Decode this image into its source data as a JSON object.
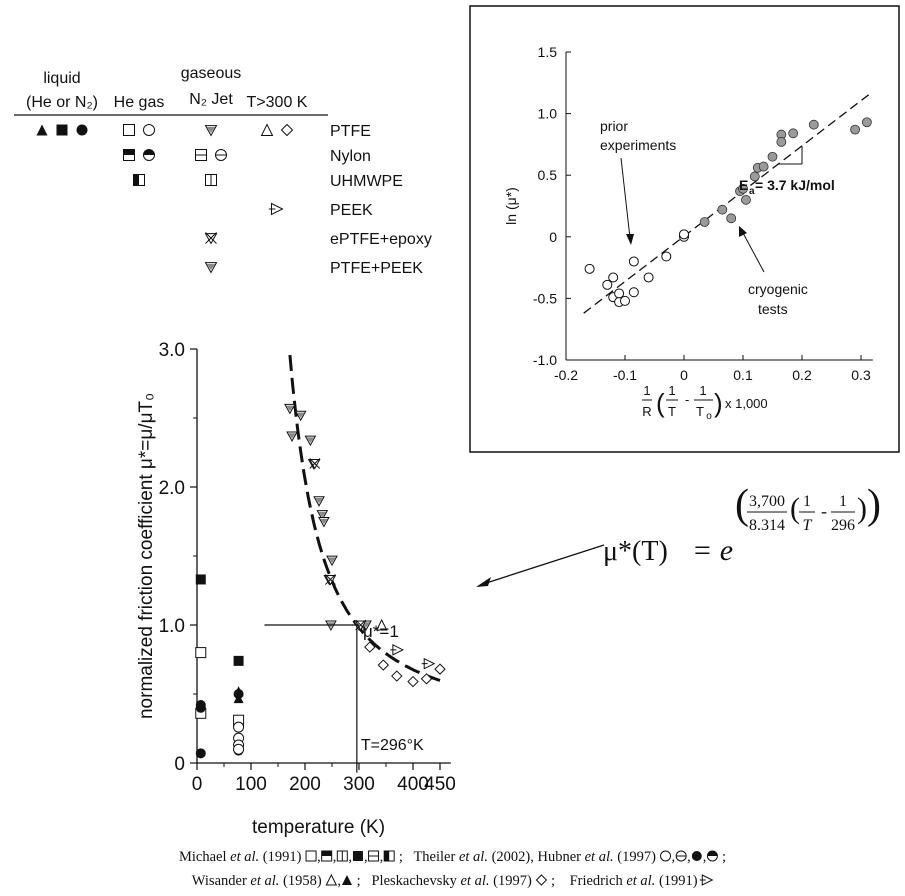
{
  "legend_table": {
    "headers": [
      {
        "lines": [
          "liquid",
          "(He or N₂)"
        ]
      },
      {
        "lines": [
          "He gas"
        ]
      },
      {
        "lines": [
          "gaseous",
          "N₂ Jet"
        ]
      },
      {
        "lines": [
          "T>300 K"
        ]
      }
    ],
    "rows": [
      {
        "material": "PTFE",
        "symbols": [
          [
            "tri-filled",
            "square-filled",
            "circle-filled"
          ],
          [
            "square-open",
            "circle-open"
          ],
          [
            "tri-down-half"
          ],
          [
            "tri-open",
            "diamond-open"
          ]
        ]
      },
      {
        "material": "Nylon",
        "symbols": [
          [],
          [
            "square-half-top",
            "circle-half-top"
          ],
          [
            "square-half-horiz",
            "circle-half-horiz"
          ],
          []
        ]
      },
      {
        "material": "UHMWPE",
        "symbols": [
          [],
          [
            "square-half-left"
          ],
          [
            "square-half-vert"
          ],
          []
        ]
      },
      {
        "material": "PEEK",
        "symbols": [
          [],
          [],
          [],
          [
            "tri-right-open"
          ]
        ]
      },
      {
        "material": "ePTFE+epoxy",
        "symbols": [
          [],
          [],
          [
            "tri-down-x"
          ],
          []
        ]
      },
      {
        "material": "PTFE+PEEK",
        "symbols": [
          [],
          [],
          [
            "tri-down-half"
          ],
          []
        ]
      }
    ]
  },
  "chart_data": [
    {
      "type": "scatter",
      "xlabel": "temperature (K)",
      "ylabel": "normalized friction coefficient  μ*=μ/μT₀",
      "xlim": [
        0,
        470
      ],
      "ylim": [
        0,
        3.0
      ],
      "x_ticks": [
        0,
        100,
        200,
        300,
        400,
        450
      ],
      "y_ticks": [
        {
          "v": 0,
          "label": "0"
        },
        {
          "v": 1,
          "label": "1.0"
        },
        {
          "v": 2,
          "label": "2.0"
        },
        {
          "v": 3,
          "label": "3.0"
        }
      ],
      "series": [
        {
          "marker": "square-filled",
          "points": [
            [
              7,
              1.33
            ],
            [
              77,
              0.74
            ]
          ]
        },
        {
          "marker": "square-open",
          "points": [
            [
              7,
              0.8
            ],
            [
              7,
              0.36
            ],
            [
              77,
              0.31
            ]
          ]
        },
        {
          "marker": "circle-filled",
          "points": [
            [
              7,
              0.42
            ],
            [
              7,
              0.4
            ],
            [
              7,
              0.07
            ],
            [
              77,
              0.5
            ],
            [
              77,
              0.09
            ]
          ]
        },
        {
          "marker": "circle-open",
          "points": [
            [
              77,
              0.26
            ],
            [
              77,
              0.18
            ],
            [
              77,
              0.13
            ],
            [
              77,
              0.1
            ]
          ]
        },
        {
          "marker": "tri-filled",
          "points": [
            [
              77,
              0.52
            ],
            [
              77,
              0.47
            ]
          ]
        },
        {
          "marker": "tri-down-half",
          "points": [
            [
              172,
              2.57
            ],
            [
              176,
              2.37
            ],
            [
              192,
              2.52
            ],
            [
              210,
              2.34
            ],
            [
              216,
              2.17
            ],
            [
              226,
              1.9
            ],
            [
              232,
              1.8
            ],
            [
              235,
              1.75
            ],
            [
              250,
              1.47
            ],
            [
              245,
              1.33
            ],
            [
              248,
              1.0
            ],
            [
              300,
              1.0
            ],
            [
              307,
              0.99
            ],
            [
              313,
              1.0
            ]
          ]
        },
        {
          "marker": "tri-down-x",
          "points": [
            [
              218,
              2.17
            ],
            [
              247,
              1.33
            ],
            [
              303,
              1.0
            ]
          ]
        },
        {
          "marker": "tri-open",
          "points": [
            [
              342,
              1.0
            ]
          ]
        },
        {
          "marker": "diamond-open",
          "points": [
            [
              320,
              0.84
            ],
            [
              345,
              0.71
            ],
            [
              370,
              0.63
            ],
            [
              400,
              0.59
            ],
            [
              425,
              0.61
            ],
            [
              450,
              0.68
            ]
          ]
        },
        {
          "marker": "tri-right-open",
          "points": [
            [
              372,
              0.82
            ],
            [
              430,
              0.72
            ]
          ]
        }
      ],
      "fit_curve": {
        "style": "dashed",
        "x_range": [
          172,
          450
        ],
        "ea_j_per_mol": 3700,
        "R": 8.314,
        "T0": 296
      },
      "annotations": {
        "equation_lhs": "μ*(T)",
        "equation_rhs": "= e",
        "exponent_num1": "3,700",
        "exponent_den1": "8.314",
        "exponent_num2": "1",
        "exponent_den2": "T",
        "exponent_minus": "-",
        "exponent_num3": "1",
        "exponent_den3": "296",
        "mu_one": "μ*=1",
        "t_ref": "T=296°K"
      }
    },
    {
      "type": "scatter",
      "xlabel": "1/R (1/T - 1/To) x 1,000",
      "ylabel": "ln (μ*)",
      "xlim": [
        -0.2,
        0.3
      ],
      "ylim": [
        -1.0,
        1.5
      ],
      "x_ticks": [
        {
          "v": -0.2,
          "label": "-0.2"
        },
        {
          "v": -0.1,
          "label": "-0.1"
        },
        {
          "v": 0,
          "label": "0"
        },
        {
          "v": 0.1,
          "label": "0.1"
        },
        {
          "v": 0.2,
          "label": "0.2"
        },
        {
          "v": 0.3,
          "label": "0.3"
        }
      ],
      "y_ticks": [
        {
          "v": -1.0,
          "label": "-1.0"
        },
        {
          "v": -0.5,
          "label": "-0.5"
        },
        {
          "v": 0,
          "label": "0"
        },
        {
          "v": 0.5,
          "label": "0.5"
        },
        {
          "v": 1.0,
          "label": "1.0"
        },
        {
          "v": 1.5,
          "label": "1.5"
        }
      ],
      "series": [
        {
          "name": "prior experiments",
          "marker": "circle-open",
          "points": [
            [
              -0.16,
              -0.26
            ],
            [
              -0.13,
              -0.39
            ],
            [
              -0.12,
              -0.33
            ],
            [
              -0.12,
              -0.49
            ],
            [
              -0.11,
              -0.46
            ],
            [
              -0.11,
              -0.53
            ],
            [
              -0.1,
              -0.52
            ],
            [
              -0.085,
              -0.2
            ],
            [
              -0.085,
              -0.45
            ],
            [
              -0.06,
              -0.33
            ],
            [
              -0.03,
              -0.16
            ],
            [
              0.0,
              0.0
            ],
            [
              0.0,
              0.02
            ]
          ]
        },
        {
          "name": "cryogenic tests",
          "marker": "circle-gray",
          "points": [
            [
              0.035,
              0.12
            ],
            [
              0.065,
              0.22
            ],
            [
              0.08,
              0.15
            ],
            [
              0.095,
              0.37
            ],
            [
              0.1,
              0.39
            ],
            [
              0.105,
              0.3
            ],
            [
              0.12,
              0.49
            ],
            [
              0.125,
              0.56
            ],
            [
              0.135,
              0.57
            ],
            [
              0.15,
              0.65
            ],
            [
              0.165,
              0.83
            ],
            [
              0.165,
              0.77
            ],
            [
              0.185,
              0.84
            ],
            [
              0.22,
              0.91
            ],
            [
              0.29,
              0.87
            ],
            [
              0.31,
              0.93
            ]
          ]
        }
      ],
      "fit_line": {
        "style": "dashed",
        "from": [
          -0.17,
          -0.62
        ],
        "to": [
          0.315,
          1.16
        ],
        "slope_from": [
          0.16,
          0.59
        ],
        "slope_to": [
          0.2,
          0.59
        ]
      },
      "annotations": {
        "prior": [
          "prior",
          "experiments"
        ],
        "cryo": [
          "cryogenic",
          "tests"
        ],
        "ea": "E",
        "ea_sub": "a",
        "ea_val": " = 3.7 kJ/mol",
        "xl_R": "R",
        "xl_T": "T",
        "xl_To": "T",
        "xl_To_sub": "o",
        "xl_one": "1",
        "xl_minus": "-",
        "xl_mult": "x 1,000"
      }
    }
  ],
  "references": {
    "line1": [
      {
        "t": "Michael ",
        "i": false
      },
      {
        "t": "et al.",
        "i": true
      },
      {
        "t": " (1991) ",
        "i": false
      },
      {
        "sym": [
          "square-open",
          "square-half-top",
          "square-half-vert",
          "square-filled",
          "square-half-horiz",
          "square-half-left"
        ]
      },
      {
        "t": " ;   Theiler ",
        "i": false
      },
      {
        "t": "et al.",
        "i": true
      },
      {
        "t": " (2002), Hubner ",
        "i": false
      },
      {
        "t": "et al.",
        "i": true
      },
      {
        "t": " (1997) ",
        "i": false
      },
      {
        "sym": [
          "circle-open",
          "circle-half-horiz",
          "circle-filled",
          "circle-half-top"
        ]
      },
      {
        "t": " ;",
        "i": false
      }
    ],
    "line2": [
      {
        "t": "Wisander ",
        "i": false
      },
      {
        "t": "et al.",
        "i": true
      },
      {
        "t": " (1958) ",
        "i": false
      },
      {
        "sym": [
          "tri-open",
          "tri-filled"
        ]
      },
      {
        "t": " ;   Pleskachevsky ",
        "i": false
      },
      {
        "t": "et al.",
        "i": true
      },
      {
        "t": " (1997) ",
        "i": false
      },
      {
        "sym": [
          "diamond-open"
        ]
      },
      {
        "t": " ;    Friedrich ",
        "i": false
      },
      {
        "t": "et al.",
        "i": true
      },
      {
        "t": " (1991) ",
        "i": false
      },
      {
        "sym": [
          "tri-right-open"
        ]
      }
    ]
  }
}
